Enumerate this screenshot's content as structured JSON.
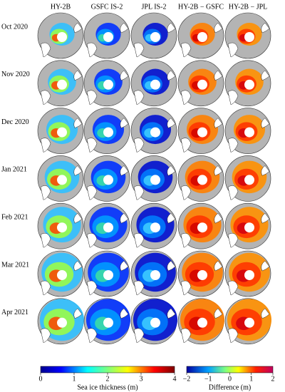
{
  "columns": [
    "HY-2B",
    "GSFC IS-2",
    "JPL IS-2",
    "HY-2B − GSFC",
    "HY-2B − JPL"
  ],
  "rows": [
    "Oct 2020",
    "Nov 2020",
    "Dec 2020",
    "Jan 2021",
    "Feb 2021",
    "Mar 2021",
    "Apr 2021"
  ],
  "colorbars": [
    {
      "ticks": [
        "0",
        "1",
        "2",
        "3",
        "4"
      ],
      "label": "Sea ice thickness (m)"
    },
    {
      "ticks": [
        "−2",
        "−1",
        "0",
        "1",
        "2"
      ],
      "label": "Difference (m)"
    }
  ]
}
